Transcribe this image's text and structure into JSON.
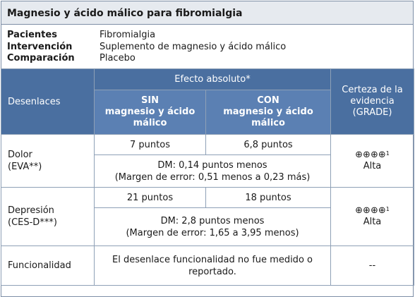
{
  "title": "Magnesio y ácido málico para fibromialgia",
  "pico": [
    {
      "key": "Pacientes",
      "value": "Fibromialgia"
    },
    {
      "key": "Intervención",
      "value": "Suplemento de magnesio y ácido málico"
    },
    {
      "key": "Comparación",
      "value": "Placebo"
    }
  ],
  "header": {
    "outcomes": "Desenlaces",
    "absolute_effect": "Efecto absoluto*",
    "without": "SIN\nmagnesio y ácido\nmálico",
    "with": "CON\nmagnesio y ácido\nmálico",
    "certainty": "Certeza de la\nevidencia\n(GRADE)"
  },
  "rows": [
    {
      "outcome": "Dolor\n(EVA**)",
      "without_value": "7 puntos",
      "with_value": "6,8 puntos",
      "md": "DM: 0,14 puntos menos\n(Margen de error: 0,51 menos a 0,23 más)",
      "certainty_symbols": "⊕⊕⊕⊕",
      "certainty_note": "1",
      "certainty_label": "Alta"
    },
    {
      "outcome": "Depresión\n(CES-D***)",
      "without_value": "21 puntos",
      "with_value": "18 puntos",
      "md": "DM: 2,8 puntos menos\n(Margen de error: 1,65 a 3,95 menos)",
      "certainty_symbols": "⊕⊕⊕⊕",
      "certainty_note": "1",
      "certainty_label": "Alta"
    }
  ],
  "functional": {
    "outcome": "Funcionalidad",
    "text": "El desenlace funcionalidad no fue medido o\nreportado.",
    "certainty": "--"
  }
}
